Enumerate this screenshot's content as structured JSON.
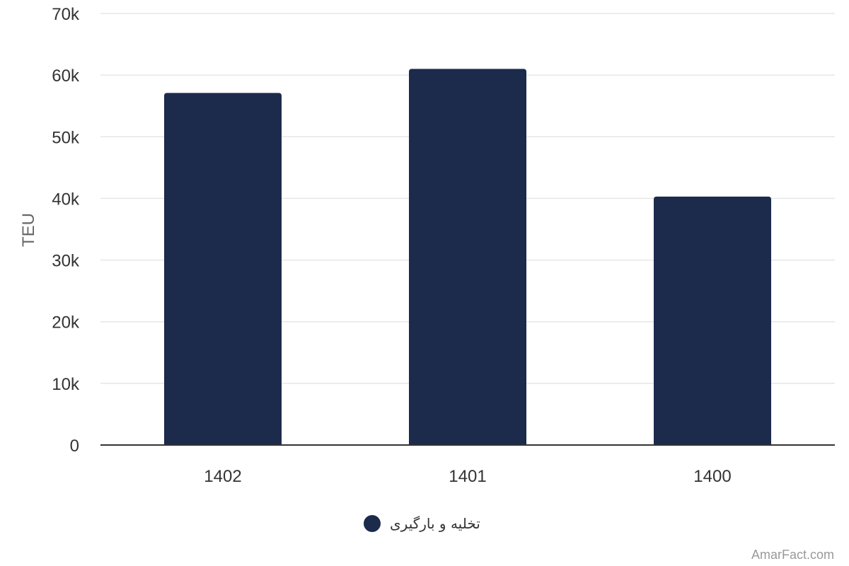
{
  "chart_data": {
    "type": "bar",
    "categories": [
      "1402",
      "1401",
      "1400"
    ],
    "series": [
      {
        "name": "تخلیه و بارگیری",
        "values": [
          57100,
          61000,
          40300
        ]
      }
    ],
    "ylabel": "TEU",
    "xlabel": "",
    "ylim": [
      0,
      70000
    ],
    "yticks": [
      0,
      10000,
      20000,
      30000,
      40000,
      50000,
      60000,
      70000
    ],
    "ytick_labels": [
      "0",
      "10k",
      "20k",
      "30k",
      "40k",
      "50k",
      "60k",
      "70k"
    ],
    "grid": true,
    "legend_position": "bottom-center",
    "bar_color": "#1c2a4c"
  },
  "credit": "AmarFact.com"
}
